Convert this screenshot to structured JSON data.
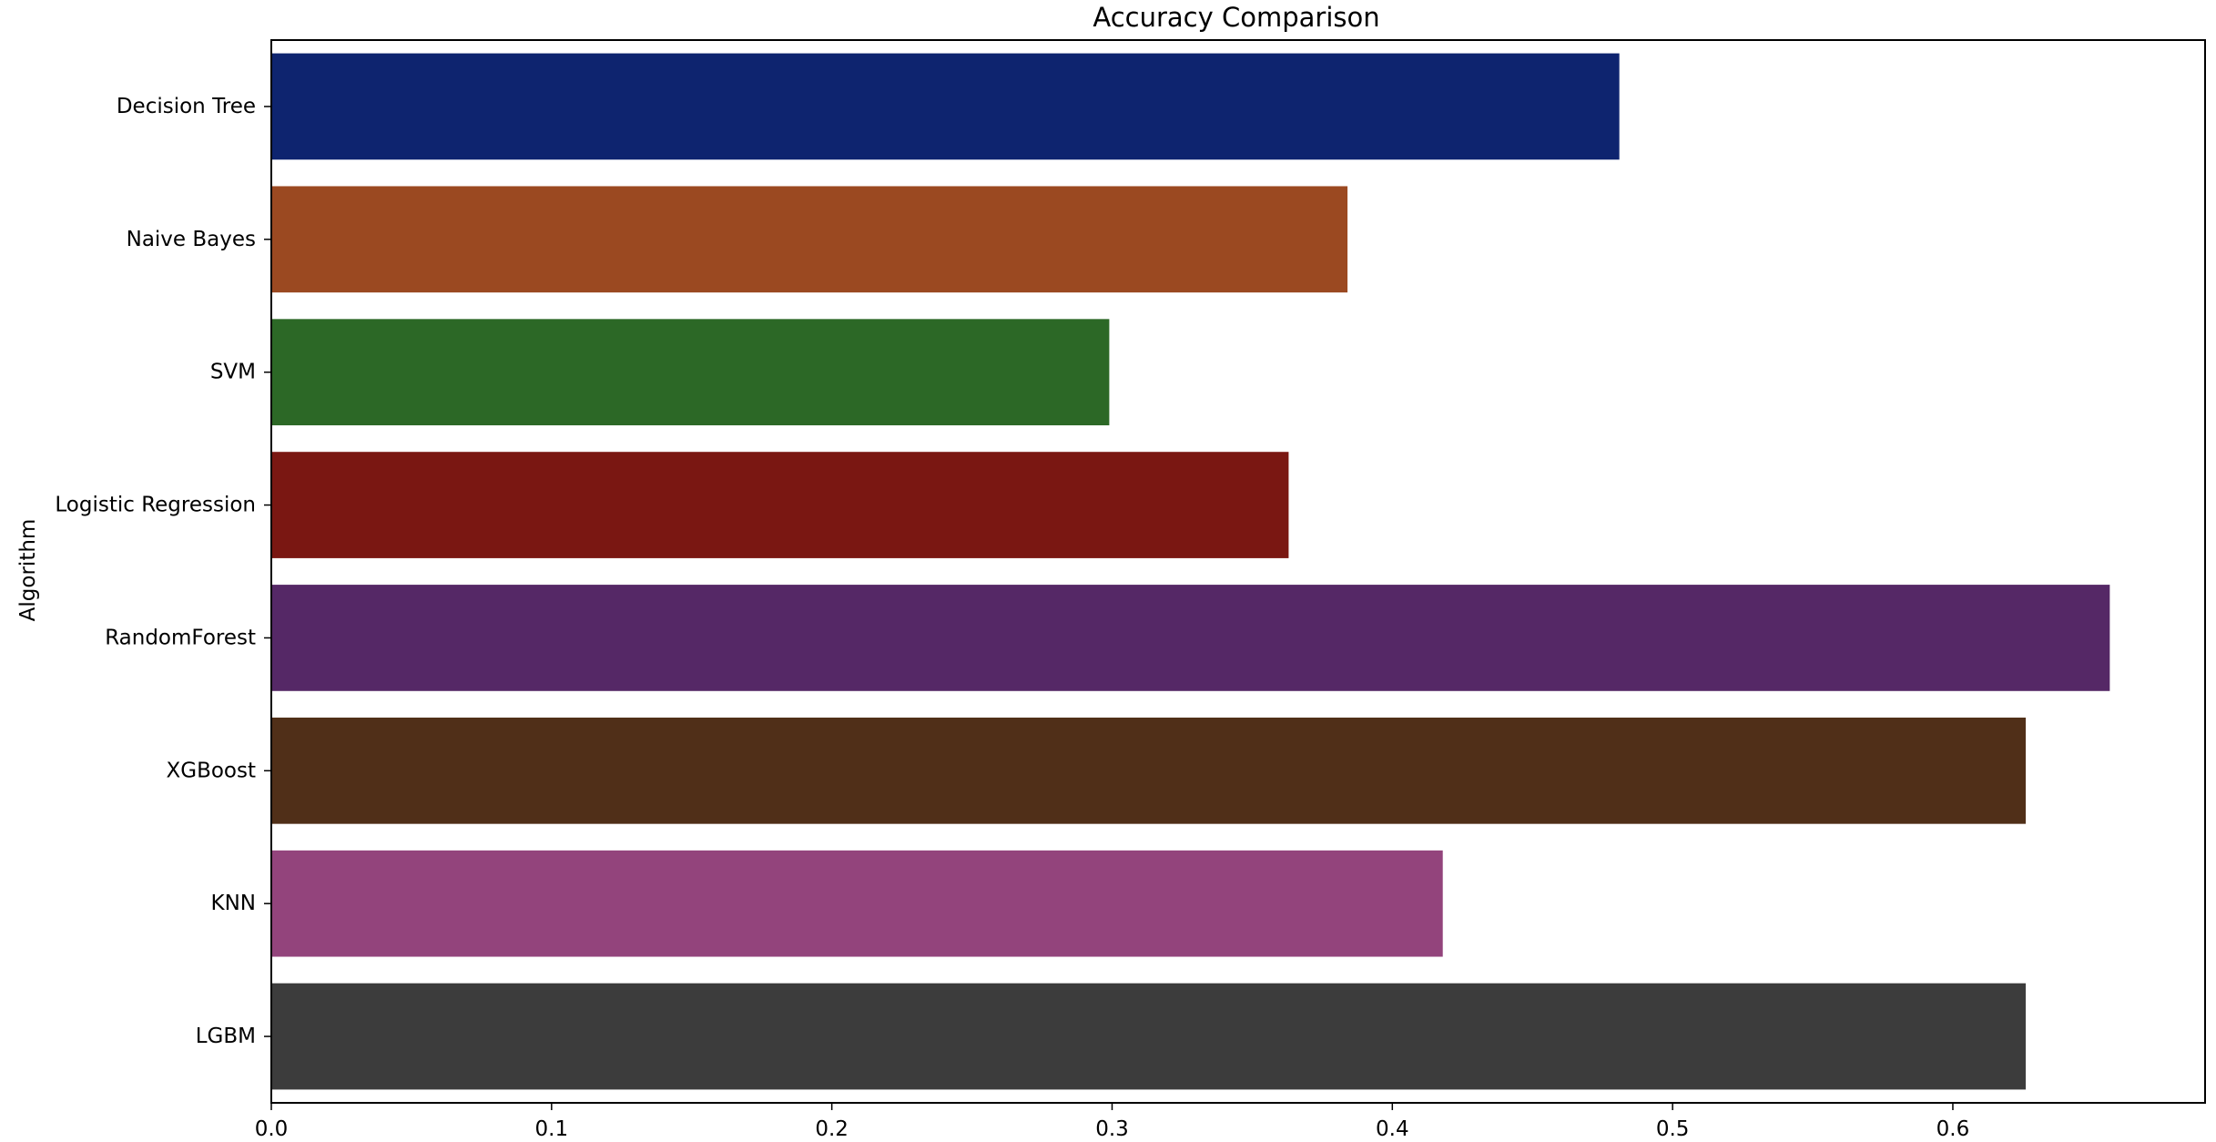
{
  "chart_data": {
    "type": "bar",
    "orientation": "horizontal",
    "title": "Accuracy Comparison",
    "xlabel": "",
    "ylabel": "Algorithm",
    "categories": [
      "Decision Tree",
      "Naive Bayes",
      "SVM",
      "Logistic Regression",
      "RandomForest",
      "XGBoost",
      "KNN",
      "LGBM"
    ],
    "values": [
      0.481,
      0.384,
      0.299,
      0.363,
      0.656,
      0.626,
      0.418,
      0.626
    ],
    "colors": [
      "#0e246f",
      "#9b4921",
      "#2c6826",
      "#7a1712",
      "#552866",
      "#502f18",
      "#93447c",
      "#3c3c3c"
    ],
    "xlim": [
      0,
      0.69
    ],
    "xticks": [
      0.0,
      0.1,
      0.2,
      0.3,
      0.4,
      0.5,
      0.6
    ],
    "xtick_labels": [
      "0.0",
      "0.1",
      "0.2",
      "0.3",
      "0.4",
      "0.5",
      "0.6"
    ],
    "grid": false,
    "legend": "none"
  }
}
